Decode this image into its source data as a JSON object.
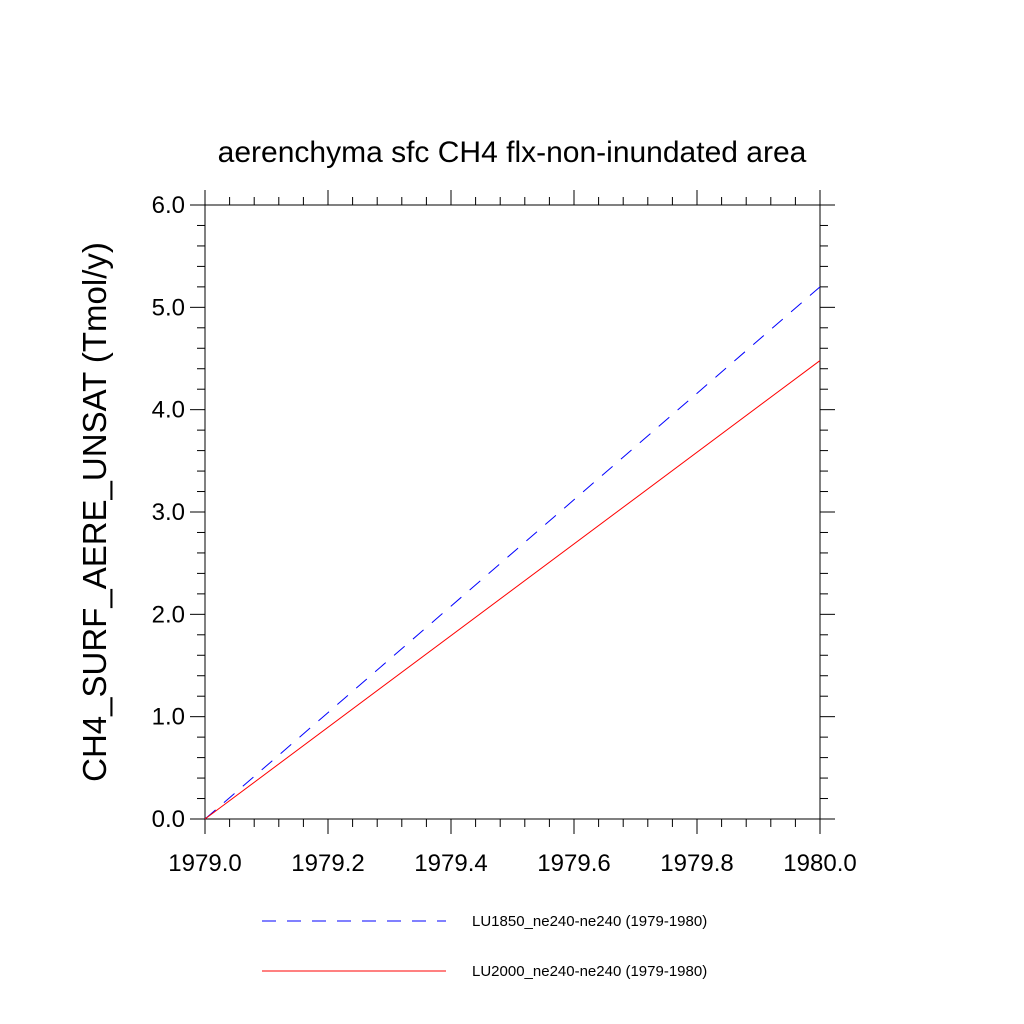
{
  "chart_data": {
    "type": "line",
    "title": "aerenchyma sfc CH4 flx-non-inundated area",
    "xlabel": "",
    "ylabel": "CH4_SURF_AERE_UNSAT  (Tmol/y)",
    "xlim": [
      1979.0,
      1980.0
    ],
    "ylim": [
      0.0,
      6.0
    ],
    "x_ticks": [
      "1979.0",
      "1979.2",
      "1979.4",
      "1979.6",
      "1979.8",
      "1980.0"
    ],
    "y_ticks": [
      "0.0",
      "1.0",
      "2.0",
      "3.0",
      "4.0",
      "5.0",
      "6.0"
    ],
    "grid": false,
    "legend_position": "bottom",
    "series": [
      {
        "name": "LU1850_ne240-ne240 (1979-1980)",
        "color": "#0000ff",
        "style": "dashed",
        "x": [
          1979.0,
          1980.0
        ],
        "y": [
          0.0,
          5.2
        ]
      },
      {
        "name": "LU2000_ne240-ne240 (1979-1980)",
        "color": "#ff0000",
        "style": "solid",
        "x": [
          1979.0,
          1980.0
        ],
        "y": [
          0.0,
          4.48
        ]
      }
    ]
  }
}
